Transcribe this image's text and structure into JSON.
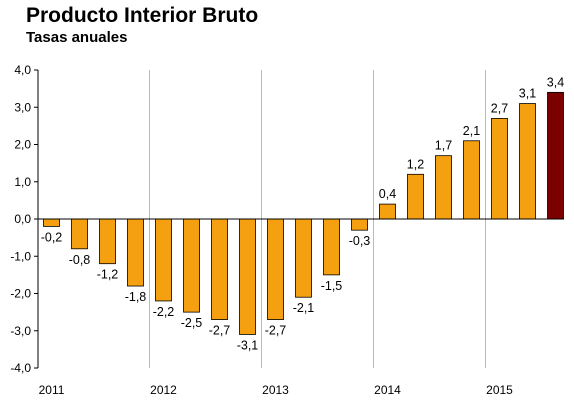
{
  "chart_data": {
    "type": "bar",
    "title": "Producto Interior Bruto",
    "subtitle": "Tasas anuales",
    "xlabel": "",
    "ylabel": "",
    "ylim": [
      -4.0,
      4.0
    ],
    "yticks": [
      "4,0",
      "3,0",
      "2,0",
      "1,0",
      "0,0",
      "-1,0",
      "-2,0",
      "-3,0",
      "-4,0"
    ],
    "ytick_values": [
      4,
      3,
      2,
      1,
      0,
      -1,
      -2,
      -3,
      -4
    ],
    "year_labels": [
      "2011",
      "2012",
      "2013",
      "2014",
      "2015"
    ],
    "quarters_per_year": 4,
    "grid": "vertical-year-separators",
    "values": [
      -0.2,
      -0.8,
      -1.2,
      -1.8,
      -2.2,
      -2.5,
      -2.7,
      -3.1,
      -2.7,
      -2.1,
      -1.5,
      -0.3,
      0.4,
      1.2,
      1.7,
      2.1,
      2.7,
      3.1,
      3.4
    ],
    "value_labels": [
      "-0,2",
      "-0,8",
      "-1,2",
      "-1,8",
      "-2,2",
      "-2,5",
      "-2,7",
      "-3,1",
      "-2,7",
      "-2,1",
      "-1,5",
      "-0,3",
      "0,4",
      "1,2",
      "1,7",
      "2,1",
      "2,7",
      "3,1",
      "3,4"
    ],
    "colors": {
      "bar": "#F5A011",
      "highlight": "#7B0000",
      "grid": "#A8BDD8",
      "axis": "#000000"
    },
    "highlight_last": true
  }
}
